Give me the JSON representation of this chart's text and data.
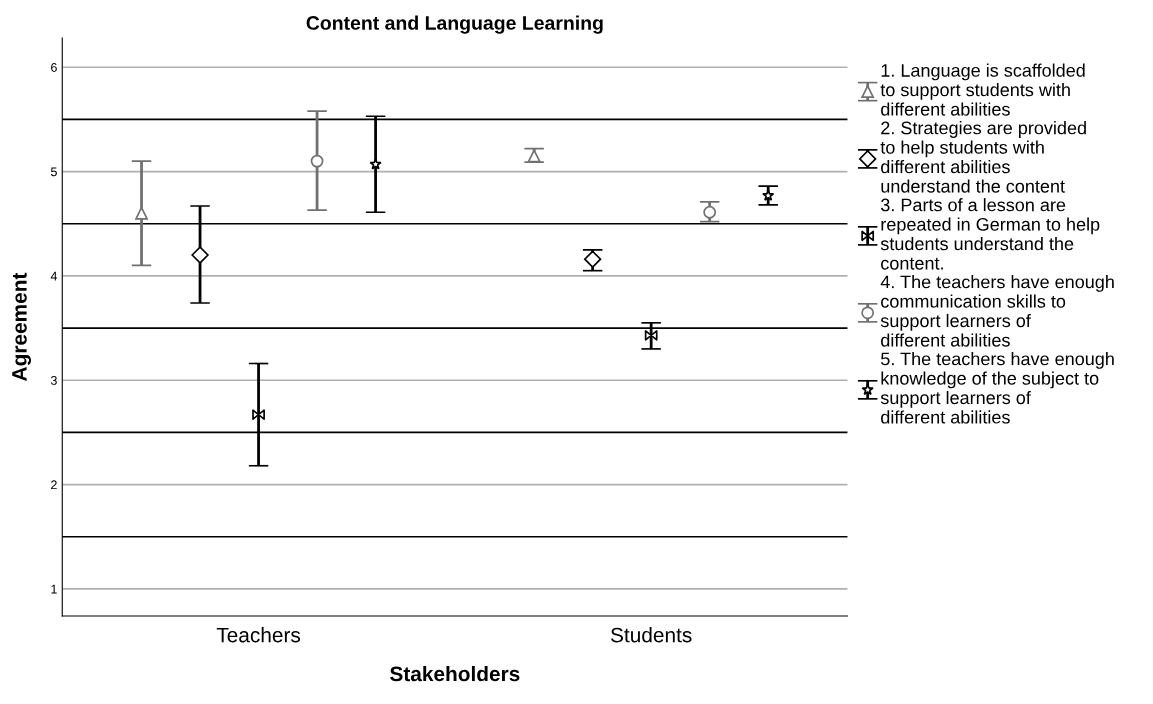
{
  "chart_data": {
    "type": "scatter",
    "title": "Content and Language Learning",
    "xlabel": "Stakeholders",
    "ylabel": "Agreement",
    "categories": [
      "Teachers",
      "Students"
    ],
    "series": [
      {
        "name": "1. Language is scaffolded to support students with different abilities",
        "color": "#707070",
        "marker": "triangle",
        "values": [
          4.6,
          5.15
        ],
        "errors": [
          [
            4.1,
            5.1
          ],
          [
            5.09,
            5.22
          ]
        ]
      },
      {
        "name": "2. Strategies are provided to help students with different abilities understand the content",
        "color": "#000000",
        "marker": "diamond",
        "values": [
          4.2,
          4.16
        ],
        "errors": [
          [
            3.74,
            4.67
          ],
          [
            4.05,
            4.25
          ]
        ]
      },
      {
        "name": "3. Parts of a lesson are repeated in German to help students understand the content.",
        "color": "#000000",
        "values": [
          2.67,
          3.43
        ],
        "errors": [
          [
            2.18,
            3.16
          ],
          [
            3.3,
            3.55
          ]
        ]
      },
      {
        "name": "4. The teachers have enough communication skills to support learners of different abilities",
        "color": "#707070",
        "marker": "circle",
        "values": [
          5.1,
          4.61
        ],
        "errors": [
          [
            4.63,
            5.58
          ],
          [
            4.52,
            4.71
          ]
        ]
      },
      {
        "name": "5. The teachers have enough knowledge of the subject to support learners of different abilities",
        "color": "#000000",
        "marker": "star",
        "values": [
          5.07,
          4.77
        ],
        "errors": [
          [
            4.61,
            5.53
          ],
          [
            4.68,
            4.86
          ]
        ]
      }
    ],
    "ylim": [
      0.74,
      6.28
    ],
    "yticks": [
      1,
      2,
      3,
      4,
      5,
      6
    ],
    "grid": "y",
    "ref_lines": [
      {
        "axis": "y",
        "value": 1.5,
        "color": "#000000"
      },
      {
        "axis": "y",
        "value": 2.5,
        "color": "#000000"
      },
      {
        "axis": "y",
        "value": 3.5,
        "color": "#000000"
      },
      {
        "axis": "y",
        "value": 4.5,
        "color": "#000000"
      },
      {
        "axis": "y",
        "value": 5.5,
        "color": "#000000"
      }
    ],
    "legend": "right"
  }
}
